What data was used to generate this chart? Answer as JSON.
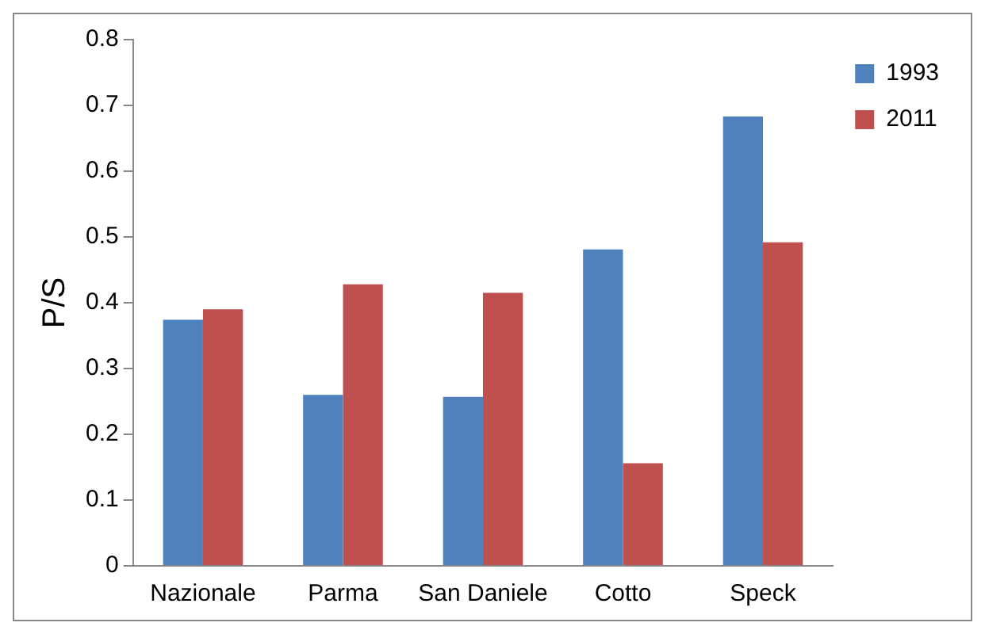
{
  "chart_data": {
    "type": "bar",
    "ylabel": "P/S",
    "categories": [
      "Nazionale",
      "Parma",
      "San Daniele",
      "Cotto",
      "Speck"
    ],
    "series": [
      {
        "name": "1993",
        "color": "#4f81bd",
        "values": [
          0.374,
          0.26,
          0.257,
          0.481,
          0.683
        ]
      },
      {
        "name": "2011",
        "color": "#c0504d",
        "values": [
          0.39,
          0.428,
          0.415,
          0.156,
          0.492
        ]
      }
    ],
    "ylim": [
      0,
      0.8
    ],
    "yticks": [
      0,
      0.1,
      0.2,
      0.3,
      0.4,
      0.5,
      0.6,
      0.7,
      0.8
    ],
    "grid": false,
    "legend": "top right"
  }
}
